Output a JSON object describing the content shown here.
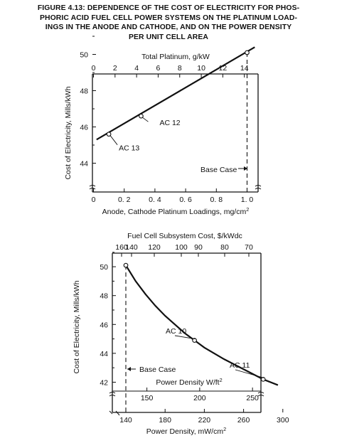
{
  "figure": {
    "title_lines": [
      "FIGURE 4.13:  DEPENDENCE OF THE COST OF ELECTRICITY FOR PHOS-",
      "PHORIC ACID FUEL CELL POWER SYSTEMS ON THE PLATINUM LOAD-",
      "INGS IN THE ANODE AND CATHODE, AND ON THE POWER DENSITY",
      "PER UNIT CELL AREA"
    ]
  },
  "chart_data": [
    {
      "type": "line",
      "title": "",
      "xlabel": "Anode, Cathode Platinum Loadings, mg/cm²",
      "ylabel": "Cost of Electricity, Mills/kWh",
      "xlim": [
        0,
        1.05
      ],
      "ylim": [
        43,
        50.5
      ],
      "x_ticks": [
        0,
        0.2,
        0.4,
        0.6,
        0.8,
        1.0
      ],
      "x_tick_labels": [
        "0",
        "0. 2",
        "0. 4",
        "0. 6",
        "0. 8",
        "1. 0"
      ],
      "y_ticks": [
        44,
        46,
        48,
        50
      ],
      "y_tick_labels": [
        "44",
        "46",
        "48",
        "50"
      ],
      "top_axis": {
        "label": "Total Platinum, g/kW",
        "ticks": [
          0,
          2,
          4,
          6,
          8,
          10,
          12,
          14
        ],
        "tick_labels": [
          "0",
          "2",
          "4",
          "6",
          "8",
          "10",
          "12",
          "14"
        ],
        "units_per_bottom_unit": 14.25
      },
      "grid": false,
      "series": [
        {
          "name": "",
          "x": [
            0.02,
            1.05
          ],
          "y": [
            45.3,
            50.4
          ]
        }
      ],
      "points": [
        {
          "label": "AC 13",
          "x": 0.1,
          "y": 45.6
        },
        {
          "label": "AC 12",
          "x": 0.31,
          "y": 46.6
        },
        {
          "label": "",
          "x": 1.0,
          "y": 50.1
        }
      ],
      "reference_line": {
        "label": "Base Case",
        "x": 1.0
      }
    },
    {
      "type": "line",
      "title": "",
      "xlabel": "Power Density,  mW/cm²",
      "ylabel": "Cost of Electricity, Mills/kWh",
      "xlim": [
        110,
        310
      ],
      "ylim": [
        41,
        50.8
      ],
      "x_ticks": [
        140,
        180,
        220,
        260,
        300
      ],
      "x_tick_labels": [
        "140",
        "180",
        "220",
        "260",
        "300"
      ],
      "y_ticks": [
        42,
        44,
        46,
        48,
        50
      ],
      "y_tick_labels": [
        "42",
        "44",
        "46",
        "48",
        "50"
      ],
      "top_axis": {
        "label": "Fuel Cell Subsystem Cost,  $/kWdc",
        "ticks": [
          160,
          140,
          120,
          100,
          90,
          80,
          70
        ],
        "tick_labels": [
          "160",
          "140",
          "120",
          "100",
          "90",
          "80",
          "70"
        ]
      },
      "inner_axis": {
        "label": "Power Density W/ft²",
        "ticks": [
          150,
          200,
          250
        ],
        "tick_labels": [
          "150",
          "200",
          "250"
        ],
        "sqft_per_sqcm": 929.03
      },
      "grid": false,
      "series": [
        {
          "name": "",
          "x": [
            140,
            150,
            160,
            170,
            180,
            190,
            200,
            210,
            220,
            240,
            260,
            280,
            295
          ],
          "y": [
            50.1,
            49.0,
            48.1,
            47.3,
            46.6,
            46.0,
            45.4,
            44.9,
            44.4,
            43.6,
            42.9,
            42.2,
            41.8
          ]
        }
      ],
      "points": [
        {
          "label": "",
          "x": 140,
          "y": 50.1
        },
        {
          "label": "AC 10",
          "x": 210,
          "y": 44.9
        },
        {
          "label": "AC 11",
          "x": 280,
          "y": 42.2
        }
      ],
      "reference_line": {
        "label": "Base Case",
        "x": 140
      }
    }
  ]
}
